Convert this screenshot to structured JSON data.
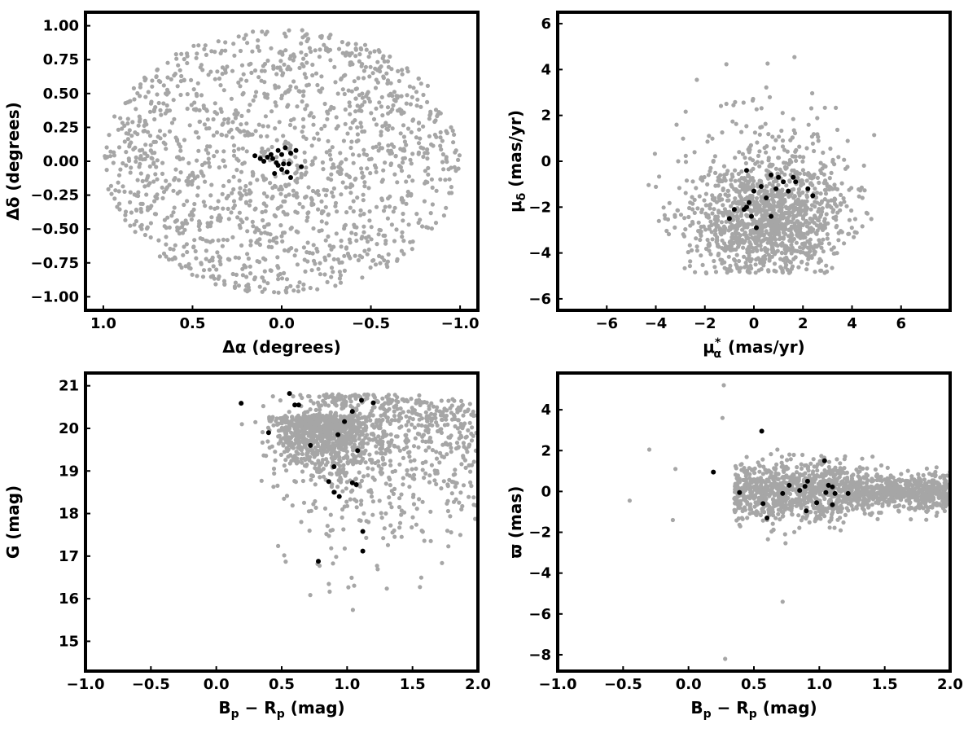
{
  "colors": {
    "field": "#a6a6a6",
    "members": "#000000",
    "frame": "#000000"
  },
  "chart_data": [
    {
      "type": "scatter",
      "title": "",
      "xlabel": "Δα (degrees)",
      "ylabel": "Δδ (degrees)",
      "xlim": [
        1.1,
        -1.1
      ],
      "ylim": [
        -1.1,
        1.1
      ],
      "xticks": [
        1.0,
        0.5,
        0.0,
        -0.5,
        -1.0
      ],
      "xtick_labels": [
        "1.0",
        "0.5",
        "0.0",
        "−0.5",
        "−1.0"
      ],
      "yticks": [
        1.0,
        0.75,
        0.5,
        0.25,
        0.0,
        -0.25,
        -0.5,
        -0.75,
        -1.0
      ],
      "ytick_labels": [
        "1.00",
        "0.75",
        "0.50",
        "0.25",
        "0.00",
        "−0.25",
        "−0.50",
        "−0.75",
        "−1.00"
      ],
      "grid": false,
      "legend": "none",
      "field_distribution": "uniform disk, radius 1.0 deg, ~1500 grey points",
      "series": [
        {
          "role": "cluster members",
          "color": "#000000",
          "points": [
            [
              -0.02,
              0.1
            ],
            [
              0.02,
              0.08
            ],
            [
              -0.05,
              0.06
            ],
            [
              0.0,
              0.05
            ],
            [
              0.06,
              0.05
            ],
            [
              0.08,
              0.03
            ],
            [
              0.15,
              0.04
            ],
            [
              0.12,
              0.02
            ],
            [
              0.1,
              0.0
            ],
            [
              0.03,
              -0.01
            ],
            [
              -0.01,
              -0.02
            ],
            [
              -0.04,
              -0.02
            ],
            [
              -0.11,
              -0.04
            ],
            [
              0.0,
              -0.06
            ],
            [
              -0.03,
              -0.08
            ],
            [
              0.04,
              -0.09
            ],
            [
              -0.05,
              -0.12
            ],
            [
              0.05,
              0.02
            ],
            [
              0.02,
              -0.03
            ],
            [
              -0.08,
              0.08
            ]
          ]
        }
      ]
    },
    {
      "type": "scatter",
      "title": "",
      "xlabel": "μ*α (mas/yr)",
      "ylabel": "μδ (mas/yr)",
      "xlim": [
        -8,
        8
      ],
      "ylim": [
        -6.5,
        6.5
      ],
      "xticks": [
        -6,
        -4,
        -2,
        0,
        2,
        4,
        6
      ],
      "xtick_labels": [
        "−6",
        "−4",
        "−2",
        "0",
        "2",
        "4",
        "6"
      ],
      "yticks": [
        6,
        4,
        2,
        0,
        -2,
        -4,
        -6
      ],
      "ytick_labels": [
        "6",
        "4",
        "2",
        "0",
        "−2",
        "−4",
        "−6"
      ],
      "grid": false,
      "legend": "none",
      "field_distribution": "broad cloud centred near (0.5, -2.5), mostly within -5 < μα < 5, -5 < μδ < 4.5, ~1400 grey points",
      "series": [
        {
          "role": "cluster members",
          "color": "#000000",
          "points": [
            [
              -0.3,
              -0.4
            ],
            [
              0.7,
              -0.6
            ],
            [
              1.0,
              -0.7
            ],
            [
              1.6,
              -0.7
            ],
            [
              1.7,
              -0.9
            ],
            [
              1.2,
              -0.9
            ],
            [
              0.3,
              -1.1
            ],
            [
              0.9,
              -1.2
            ],
            [
              0.0,
              -1.3
            ],
            [
              1.4,
              -1.3
            ],
            [
              2.2,
              -1.2
            ],
            [
              2.4,
              -1.5
            ],
            [
              0.5,
              -1.6
            ],
            [
              -0.2,
              -1.8
            ],
            [
              -0.3,
              -2.0
            ],
            [
              -0.4,
              -2.1
            ],
            [
              -0.8,
              -2.1
            ],
            [
              -0.1,
              -2.4
            ],
            [
              0.7,
              -2.4
            ],
            [
              -1.0,
              -2.5
            ],
            [
              0.1,
              -2.9
            ]
          ]
        }
      ]
    },
    {
      "type": "scatter",
      "title": "",
      "xlabel": "Bp − Rp (mag)",
      "ylabel": "G (mag)",
      "xlim": [
        -1.0,
        2.0
      ],
      "ylim": [
        14.3,
        21.3
      ],
      "xticks": [
        -1.0,
        -0.5,
        0.0,
        0.5,
        1.0,
        1.5,
        2.0
      ],
      "xtick_labels": [
        "−1.0",
        "−0.5",
        "0.0",
        "0.5",
        "1.0",
        "1.5",
        "2.0"
      ],
      "yticks": [
        21,
        20,
        19,
        18,
        17,
        16,
        15
      ],
      "ytick_labels": [
        "21",
        "20",
        "19",
        "18",
        "17",
        "16",
        "15"
      ],
      "grid": false,
      "legend": "none",
      "field_distribution": "colour-magnitude field sequence: dense clump near Bp-Rp 0.5-1.1, G 19-20.8, extending to G ~15 near Bp-Rp 1.0-1.5, ~1400 grey points",
      "series": [
        {
          "role": "cluster members",
          "color": "#000000",
          "points": [
            [
              0.56,
              20.82
            ],
            [
              1.11,
              20.66
            ],
            [
              0.19,
              20.59
            ],
            [
              1.2,
              20.6
            ],
            [
              0.6,
              20.55
            ],
            [
              0.63,
              20.55
            ],
            [
              1.04,
              20.4
            ],
            [
              0.98,
              20.16
            ],
            [
              0.4,
              19.9
            ],
            [
              0.93,
              19.85
            ],
            [
              0.72,
              19.6
            ],
            [
              1.08,
              19.48
            ],
            [
              0.9,
              19.1
            ],
            [
              0.86,
              18.75
            ],
            [
              1.04,
              18.72
            ],
            [
              1.07,
              18.68
            ],
            [
              0.9,
              18.5
            ],
            [
              0.94,
              18.4
            ],
            [
              1.12,
              17.58
            ],
            [
              1.12,
              17.12
            ],
            [
              0.78,
              16.88
            ]
          ]
        }
      ]
    },
    {
      "type": "scatter",
      "title": "",
      "xlabel": "Bp − Rp (mag)",
      "ylabel": "ϖ (mas)",
      "xlim": [
        -1.0,
        2.0
      ],
      "ylim": [
        -8.8,
        5.8
      ],
      "xticks": [
        -1.0,
        -0.5,
        0.0,
        0.5,
        1.0,
        1.5,
        2.0
      ],
      "xtick_labels": [
        "−1.0",
        "−0.5",
        "0.0",
        "0.5",
        "1.0",
        "1.5",
        "2.0"
      ],
      "yticks": [
        4,
        2,
        0,
        -2,
        -4,
        -6,
        -8
      ],
      "ytick_labels": [
        "4",
        "2",
        "0",
        "−2",
        "−4",
        "−6",
        "−8"
      ],
      "grid": false,
      "legend": "none",
      "field_distribution": "horizontal band centred at ϖ≈0 for Bp-Rp 0.3-2.0, spread ±1.5, outliers to ϖ -8.2 and +5.2, ~1400 grey points",
      "series": [
        {
          "role": "cluster members",
          "color": "#000000",
          "points": [
            [
              0.56,
              2.95
            ],
            [
              0.19,
              0.95
            ],
            [
              1.04,
              1.5
            ],
            [
              0.91,
              0.5
            ],
            [
              0.77,
              0.3
            ],
            [
              1.07,
              0.3
            ],
            [
              0.89,
              0.25
            ],
            [
              1.1,
              0.22
            ],
            [
              0.85,
              0.05
            ],
            [
              0.39,
              -0.05
            ],
            [
              0.72,
              -0.1
            ],
            [
              1.12,
              -0.1
            ],
            [
              1.22,
              -0.1
            ],
            [
              1.05,
              -0.05
            ],
            [
              0.57,
              -0.6
            ],
            [
              0.98,
              -0.55
            ],
            [
              1.1,
              -0.65
            ],
            [
              0.9,
              -0.95
            ],
            [
              0.6,
              -1.3
            ]
          ]
        }
      ]
    }
  ]
}
